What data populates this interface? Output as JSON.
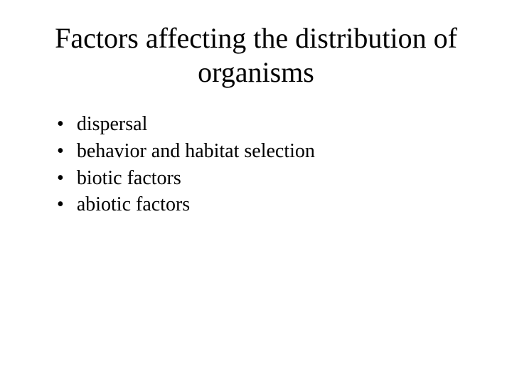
{
  "slide": {
    "title": "Factors affecting the distribution of organisms",
    "bullets": [
      "dispersal",
      "behavior and habitat selection",
      "biotic factors",
      "abiotic factors"
    ]
  },
  "style": {
    "background_color": "#ffffff",
    "text_color": "#000000",
    "title_fontsize": 40,
    "bullet_fontsize": 28,
    "font_family": "Times New Roman",
    "bullet_marker": "•"
  }
}
